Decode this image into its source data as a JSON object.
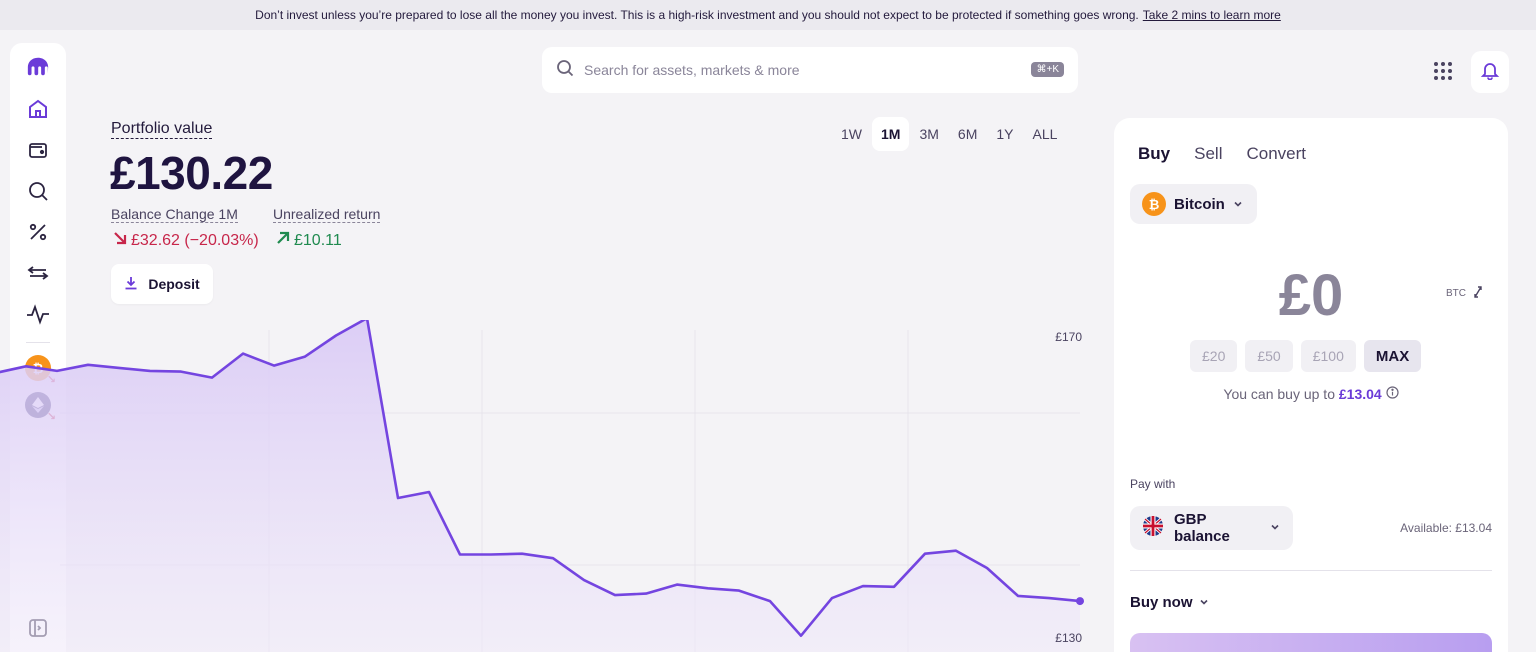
{
  "banner": {
    "text": "Don’t invest unless you’re prepared to lose all the money you invest. This is a high-risk investment and you should not expect to be protected if something goes wrong.",
    "link": "Take 2 mins to learn more"
  },
  "search": {
    "placeholder": "Search for assets, markets & more",
    "shortcut": "⌘+K"
  },
  "portfolio": {
    "label": "Portfolio value",
    "value": "£130.22",
    "balance_change_label": "Balance Change 1M",
    "balance_change_value": "£32.62 (−20.03%)",
    "unrealized_label": "Unrealized return",
    "unrealized_value": "£10.11",
    "deposit_label": "Deposit"
  },
  "ranges": {
    "items": [
      "1W",
      "1M",
      "3M",
      "6M",
      "1Y",
      "ALL"
    ],
    "active": "1M"
  },
  "chart_data": {
    "type": "area",
    "y_labels": [
      "£170",
      "£130"
    ],
    "color": "#7445e0",
    "values": [
      165.2,
      166.1,
      165.5,
      166.3,
      165.9,
      165.5,
      165.4,
      164.6,
      167.8,
      166.2,
      167.4,
      170.2,
      172.5,
      148.6,
      149.4,
      141.1,
      141.1,
      141.2,
      140.6,
      137.7,
      135.7,
      135.9,
      137.1,
      136.6,
      136.3,
      134.9,
      130.3,
      135.3,
      136.9,
      136.8,
      141.2,
      141.6,
      139.3,
      135.6,
      135.3,
      134.9
    ]
  },
  "trade": {
    "tabs": [
      "Buy",
      "Sell",
      "Convert"
    ],
    "active_tab": "Buy",
    "asset": "Bitcoin",
    "amount": "£0",
    "unit": "BTC",
    "quick_amounts": [
      "£20",
      "£50",
      "£100",
      "MAX"
    ],
    "can_buy_prefix": "You can buy up to",
    "can_buy_amount": "£13.04",
    "pay_with_label": "Pay with",
    "pay_method": "GBP balance",
    "available": "Available: £13.04",
    "order_type": "Buy now"
  },
  "colors": {
    "accent": "#7445e0",
    "negative": "#c7264a",
    "positive": "#1f8a4f",
    "bitcoin": "#f7931a",
    "ethereum": "#2b2466"
  }
}
